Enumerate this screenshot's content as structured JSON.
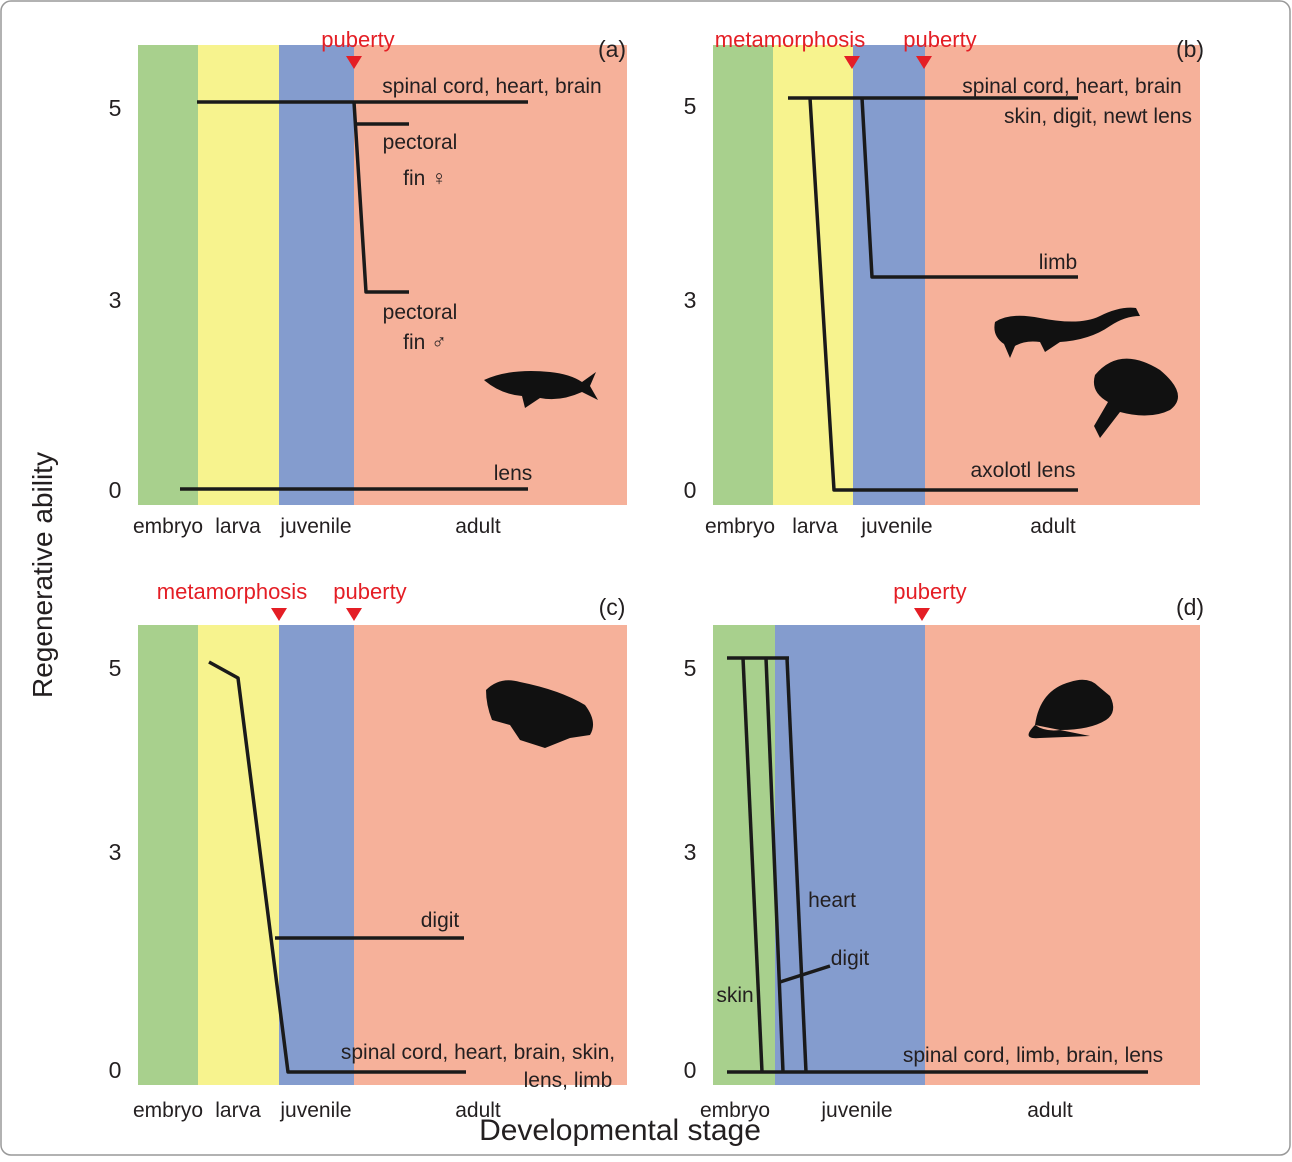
{
  "y_axis_label": "Regenerative ability",
  "x_axis_label": "Developmental stage",
  "panels": [
    {
      "label": "(a)",
      "events": [
        "puberty"
      ],
      "stages": [
        "embryo",
        "larva",
        "juvenile",
        "adult"
      ],
      "ticks": [
        "5",
        "3",
        "0"
      ],
      "line_labels": [
        "spinal cord, heart, brain",
        "pectoral",
        "fin ♀",
        "pectoral",
        "fin ♂",
        "lens"
      ]
    },
    {
      "label": "(b)",
      "events": [
        "metamorphosis",
        "puberty"
      ],
      "stages": [
        "embryo",
        "larva",
        "juvenile",
        "adult"
      ],
      "ticks": [
        "5",
        "3",
        "0"
      ],
      "line_labels": [
        "spinal cord, heart, brain",
        "skin, digit, newt lens",
        "limb",
        "axolotl lens"
      ]
    },
    {
      "label": "(c)",
      "events": [
        "metamorphosis",
        "puberty"
      ],
      "stages": [
        "embryo",
        "larva",
        "juvenile",
        "adult"
      ],
      "ticks": [
        "5",
        "3",
        "0"
      ],
      "line_labels": [
        "digit",
        "spinal cord, heart, brain, skin,",
        "lens, limb"
      ]
    },
    {
      "label": "(d)",
      "events": [
        "puberty"
      ],
      "stages": [
        "embryo",
        "juvenile",
        "adult"
      ],
      "ticks": [
        "5",
        "3",
        "0"
      ],
      "line_labels": [
        "heart",
        "digit",
        "skin",
        "spinal cord, limb, brain, lens"
      ]
    }
  ]
}
